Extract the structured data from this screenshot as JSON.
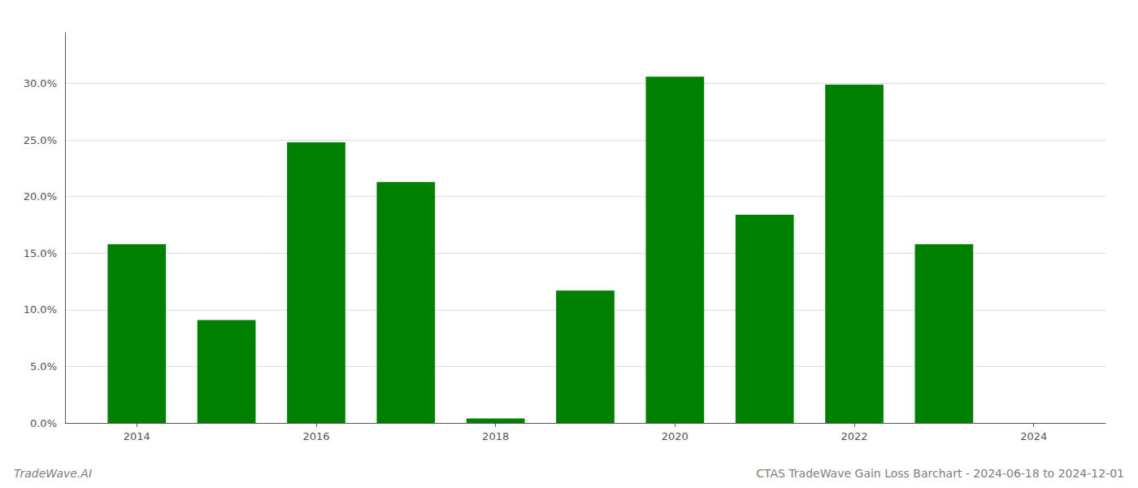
{
  "chart_data": {
    "type": "bar",
    "title": "CTAS TradeWave Gain Loss Barchart - 2024-06-18 to 2024-12-01",
    "annotation": "TradeWave.AI",
    "x": [
      2014,
      2015,
      2016,
      2017,
      2018,
      2019,
      2020,
      2021,
      2022,
      2023
    ],
    "values": [
      0.158,
      0.091,
      0.248,
      0.213,
      0.004,
      0.117,
      0.306,
      0.184,
      0.299,
      0.158
    ],
    "color": "#008000",
    "xlim": [
      2013.2,
      2024.8
    ],
    "xticks": [
      2014,
      2016,
      2018,
      2020,
      2022,
      2024
    ],
    "ylim": [
      0.0,
      0.345
    ],
    "yticks": [
      {
        "value": 0.0,
        "label": "0.0%"
      },
      {
        "value": 0.05,
        "label": "5.0%"
      },
      {
        "value": 0.1,
        "label": "10.0%"
      },
      {
        "value": 0.15,
        "label": "15.0%"
      },
      {
        "value": 0.2,
        "label": "20.0%"
      },
      {
        "value": 0.25,
        "label": "25.0%"
      },
      {
        "value": 0.3,
        "label": "30.0%"
      }
    ],
    "grid": true
  }
}
